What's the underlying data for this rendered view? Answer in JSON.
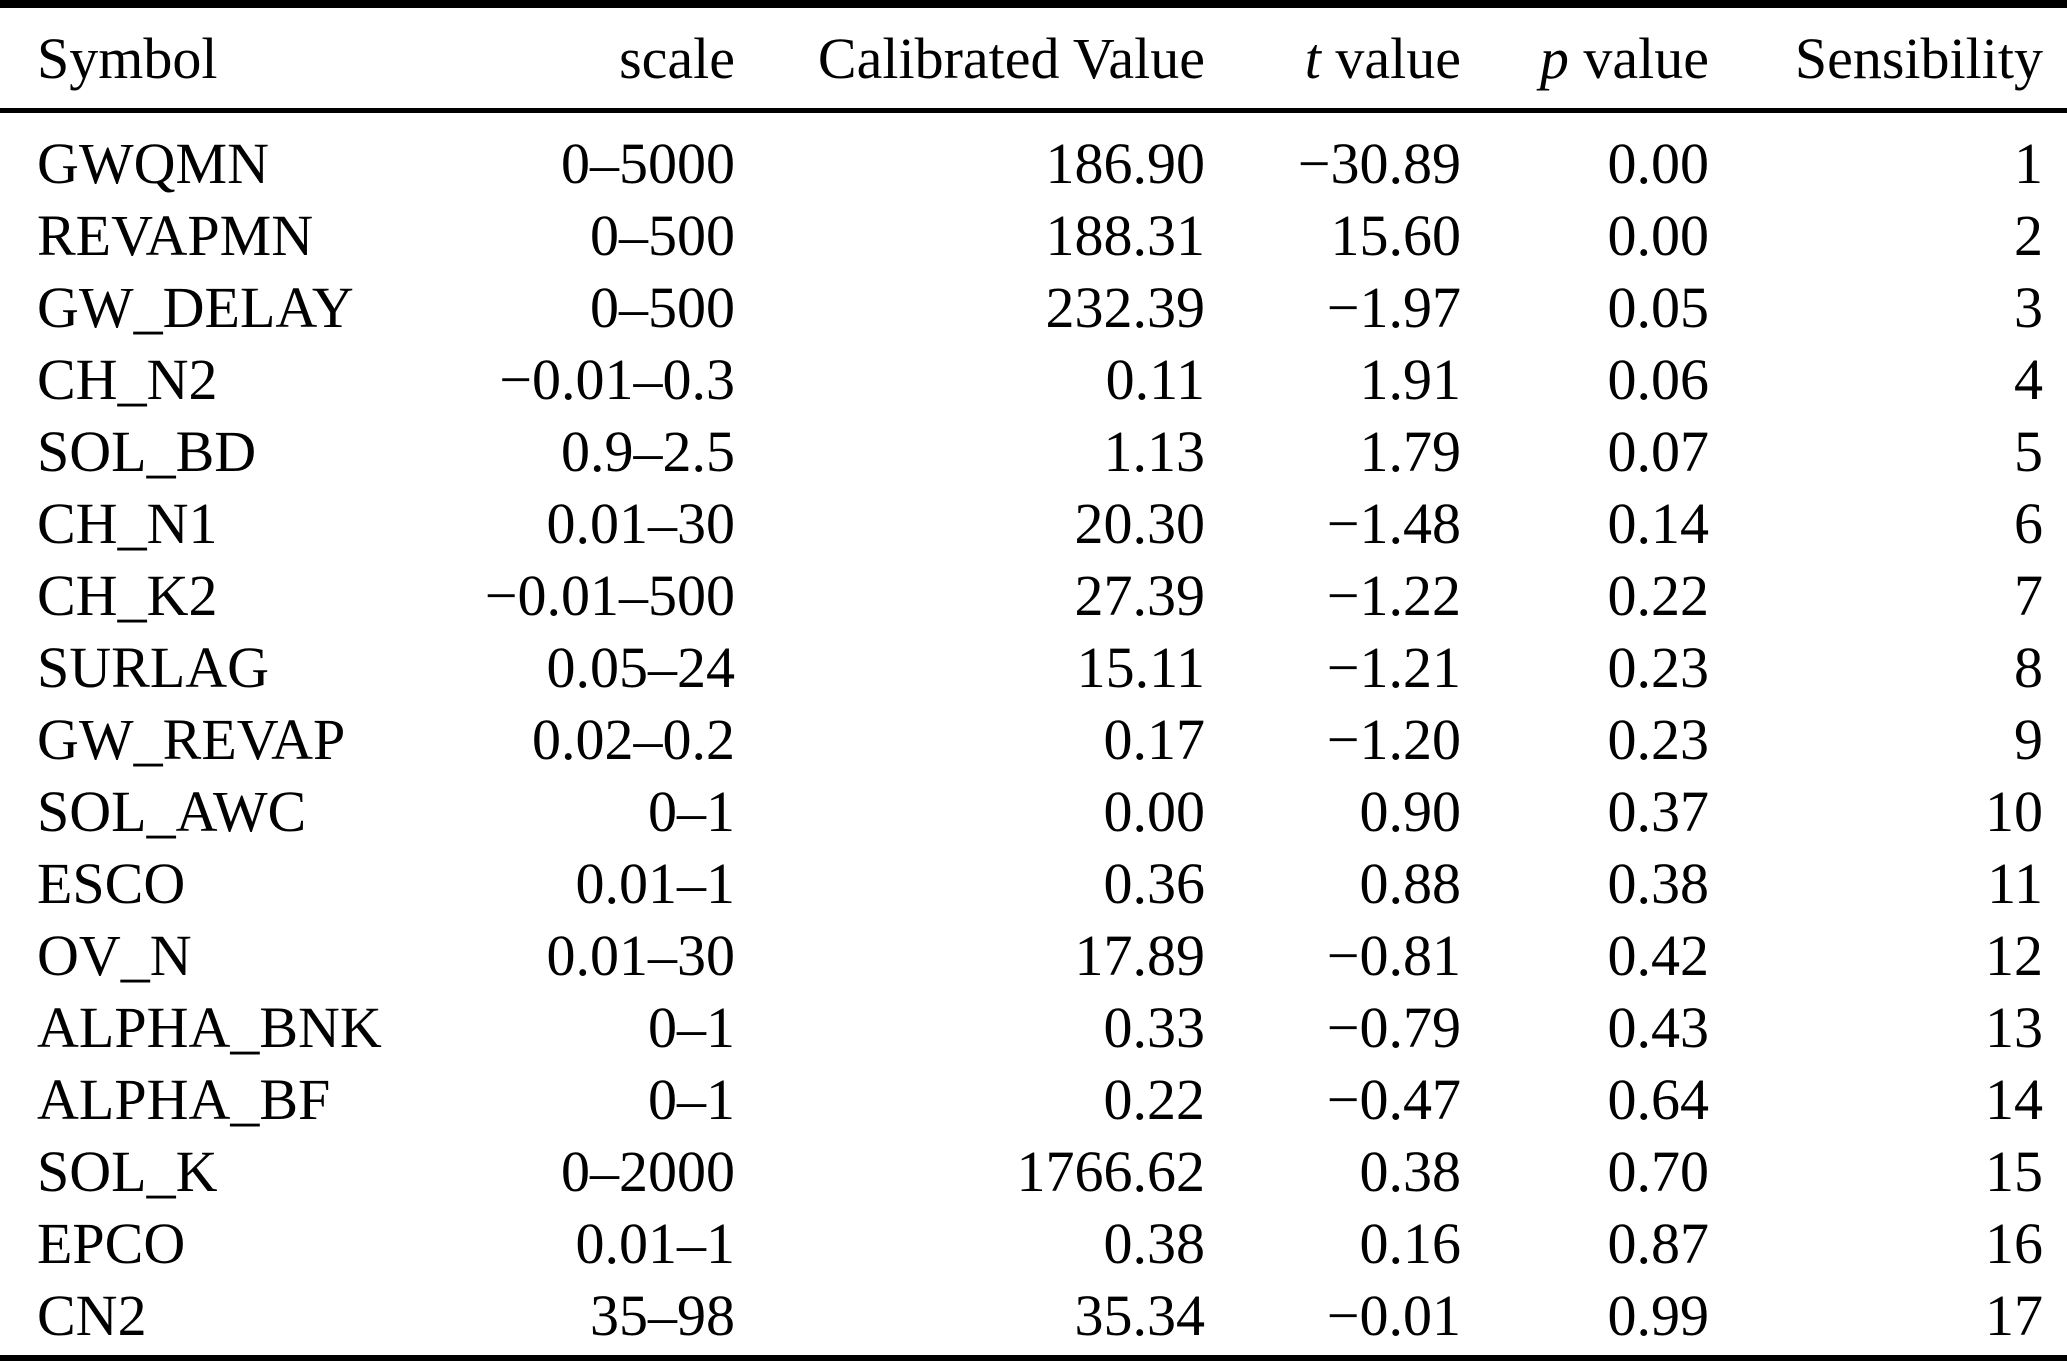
{
  "colors": {
    "background": "#ffffff",
    "text": "#000000",
    "rule": "#000000"
  },
  "table": {
    "headers": {
      "symbol": "Symbol",
      "scale": "scale",
      "calibrated_value": "Calibrated Value",
      "t_italic": "t",
      "t_rest": " value",
      "p_italic": "p",
      "p_rest": " value",
      "sensibility": "Sensibility"
    },
    "rows": [
      {
        "symbol": "GWQMN",
        "scale": "0–5000",
        "calibrated_value": "186.90",
        "t_value": "−30.89",
        "p_value": "0.00",
        "sensibility": "1"
      },
      {
        "symbol": "REVAPMN",
        "scale": "0–500",
        "calibrated_value": "188.31",
        "t_value": "15.60",
        "p_value": "0.00",
        "sensibility": "2"
      },
      {
        "symbol": "GW_DELAY",
        "scale": "0–500",
        "calibrated_value": "232.39",
        "t_value": "−1.97",
        "p_value": "0.05",
        "sensibility": "3"
      },
      {
        "symbol": "CH_N2",
        "scale": "−0.01–0.3",
        "calibrated_value": "0.11",
        "t_value": "1.91",
        "p_value": "0.06",
        "sensibility": "4"
      },
      {
        "symbol": "SOL_BD",
        "scale": "0.9–2.5",
        "calibrated_value": "1.13",
        "t_value": "1.79",
        "p_value": "0.07",
        "sensibility": "5"
      },
      {
        "symbol": "CH_N1",
        "scale": "0.01–30",
        "calibrated_value": "20.30",
        "t_value": "−1.48",
        "p_value": "0.14",
        "sensibility": "6"
      },
      {
        "symbol": "CH_K2",
        "scale": "−0.01–500",
        "calibrated_value": "27.39",
        "t_value": "−1.22",
        "p_value": "0.22",
        "sensibility": "7"
      },
      {
        "symbol": "SURLAG",
        "scale": "0.05–24",
        "calibrated_value": "15.11",
        "t_value": "−1.21",
        "p_value": "0.23",
        "sensibility": "8"
      },
      {
        "symbol": "GW_REVAP",
        "scale": "0.02–0.2",
        "calibrated_value": "0.17",
        "t_value": "−1.20",
        "p_value": "0.23",
        "sensibility": "9"
      },
      {
        "symbol": "SOL_AWC",
        "scale": "0–1",
        "calibrated_value": "0.00",
        "t_value": "0.90",
        "p_value": "0.37",
        "sensibility": "10"
      },
      {
        "symbol": "ESCO",
        "scale": "0.01–1",
        "calibrated_value": "0.36",
        "t_value": "0.88",
        "p_value": "0.38",
        "sensibility": "11"
      },
      {
        "symbol": "OV_N",
        "scale": "0.01–30",
        "calibrated_value": "17.89",
        "t_value": "−0.81",
        "p_value": "0.42",
        "sensibility": "12"
      },
      {
        "symbol": "ALPHA_BNK",
        "scale": "0–1",
        "calibrated_value": "0.33",
        "t_value": "−0.79",
        "p_value": "0.43",
        "sensibility": "13"
      },
      {
        "symbol": "ALPHA_BF",
        "scale": "0–1",
        "calibrated_value": "0.22",
        "t_value": "−0.47",
        "p_value": "0.64",
        "sensibility": "14"
      },
      {
        "symbol": "SOL_K",
        "scale": "0–2000",
        "calibrated_value": "1766.62",
        "t_value": "0.38",
        "p_value": "0.70",
        "sensibility": "15"
      },
      {
        "symbol": "EPCO",
        "scale": "0.01–1",
        "calibrated_value": "0.38",
        "t_value": "0.16",
        "p_value": "0.87",
        "sensibility": "16"
      },
      {
        "symbol": "CN2",
        "scale": "35–98",
        "calibrated_value": "35.34",
        "t_value": "−0.01",
        "p_value": "0.99",
        "sensibility": "17"
      }
    ]
  }
}
